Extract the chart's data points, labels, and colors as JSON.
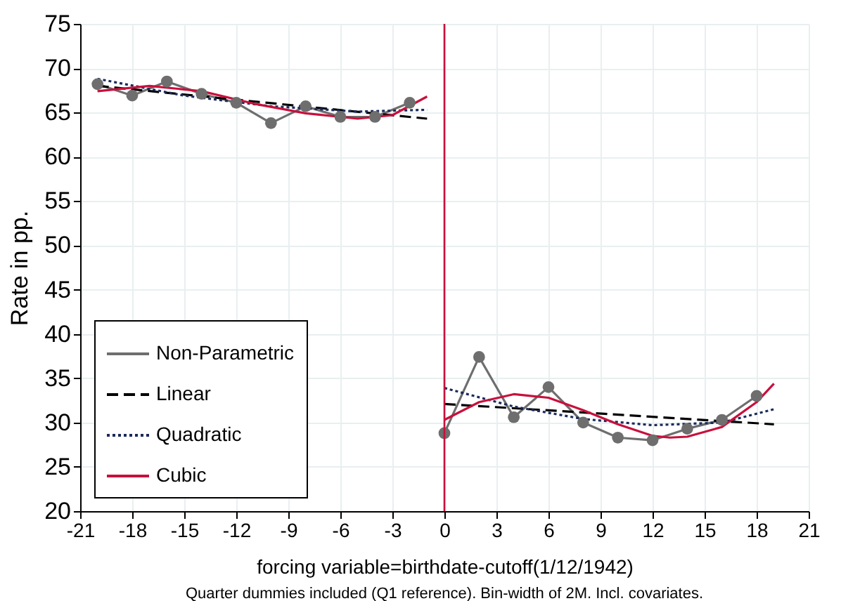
{
  "chart_data": {
    "type": "line",
    "xlabel": "forcing variable=birthdate-cutoff(1/12/1942)",
    "ylabel": "Rate in pp.",
    "annotations": [
      "Quarter dummies included (Q1 reference). Bin-width of 2M. Incl. covariates."
    ],
    "xlim": [
      -21,
      21
    ],
    "xticks": [
      -21,
      -18,
      -15,
      -12,
      -9,
      -6,
      -3,
      0,
      3,
      6,
      9,
      12,
      15,
      18,
      21
    ],
    "ylim": [
      20,
      75
    ],
    "yticks": [
      20,
      25,
      30,
      35,
      40,
      45,
      50,
      55,
      60,
      65,
      70,
      75
    ],
    "grid": true,
    "legend": "bottom left",
    "ref_lines": [
      {
        "axis": "x",
        "value": 0,
        "color": "#c8103c"
      }
    ],
    "series": [
      {
        "name": "Non-Parametric",
        "color": "#6e6e6e",
        "marker": "circle",
        "line_style": "solid",
        "x": [
          -20,
          -18,
          -16,
          -14,
          -12,
          -10,
          -8,
          -6,
          -4,
          -2,
          -1,
          0,
          2,
          4,
          6,
          8,
          10,
          12,
          14,
          16,
          18
        ],
        "values": [
          68.2,
          66.9,
          68.5,
          67.1,
          66.1,
          63.8,
          65.7,
          64.5,
          64.5,
          66.1,
          null,
          28.8,
          37.4,
          30.6,
          34.0,
          30.0,
          28.3,
          28.0,
          29.3,
          30.3,
          33.0
        ]
      },
      {
        "name": "Linear",
        "color": "#000000",
        "marker": "none",
        "line_style": "dashed",
        "x": [
          -20,
          -1,
          -0.5,
          0,
          19
        ],
        "values": [
          68.0,
          64.3,
          null,
          32.1,
          29.8
        ]
      },
      {
        "name": "Quadratic",
        "color": "#1a2a5a",
        "marker": "none",
        "line_style": "dotted",
        "x": [
          -20,
          -15,
          -10,
          -5,
          -1,
          -0.5,
          0,
          4,
          8,
          12,
          16,
          19
        ],
        "values": [
          68.8,
          66.9,
          65.7,
          65.1,
          65.3,
          null,
          33.9,
          31.8,
          30.4,
          29.7,
          30.0,
          31.5
        ]
      },
      {
        "name": "Cubic",
        "color": "#c8103c",
        "marker": "none",
        "line_style": "solid",
        "x": [
          -20,
          -17,
          -14,
          -11,
          -8,
          -5,
          -3,
          -1,
          -0.5,
          0,
          2,
          4,
          6,
          8,
          10,
          12,
          13,
          14,
          16,
          18,
          19
        ],
        "values": [
          67.4,
          68.0,
          67.4,
          66.0,
          64.9,
          64.3,
          64.7,
          66.8,
          null,
          30.3,
          32.3,
          33.2,
          32.8,
          31.4,
          29.8,
          28.5,
          28.3,
          28.4,
          29.5,
          32.3,
          34.4
        ]
      }
    ]
  }
}
